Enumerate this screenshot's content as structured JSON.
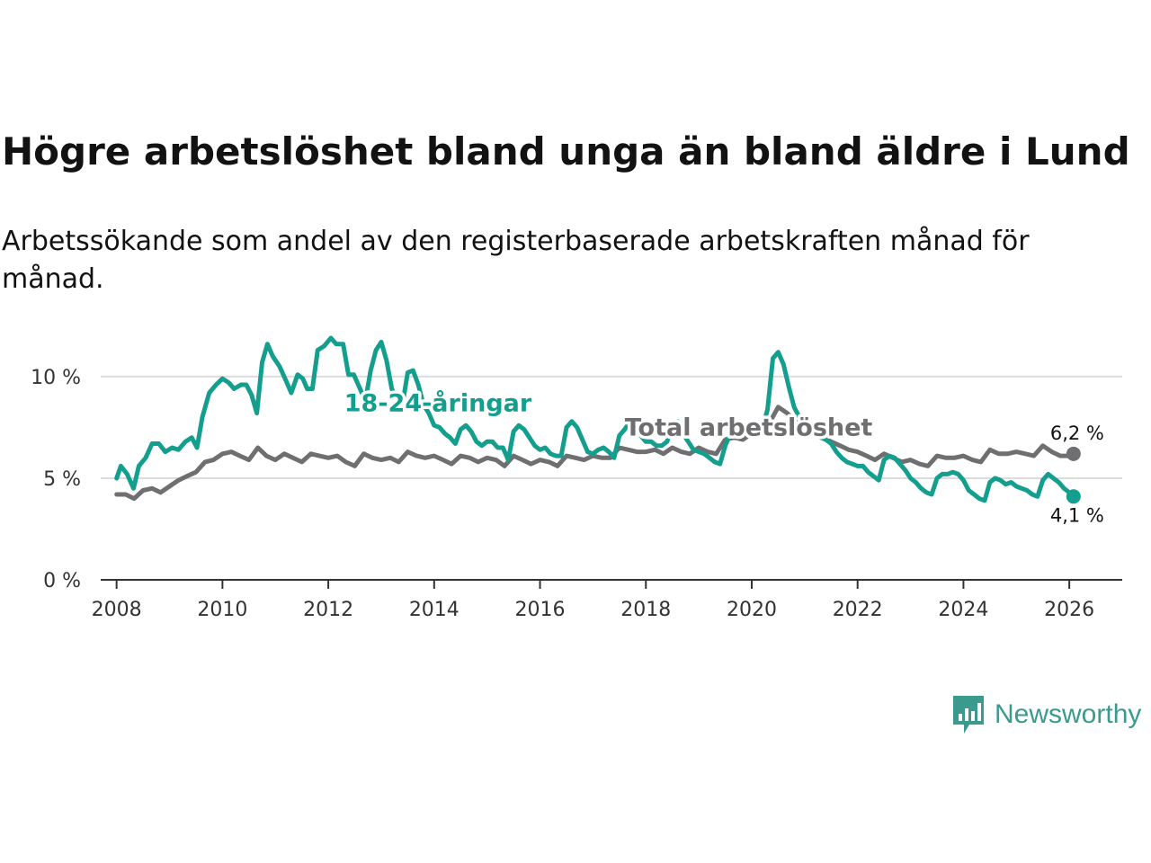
{
  "header": {
    "title": "Högre arbetslöshet bland unga än bland äldre i Lund",
    "subtitle": "Arbetssökande som andel av den registerbaserade arbetskraften månad för månad."
  },
  "brand": {
    "name": "Newsworthy",
    "icon": "bar-chart-speech-icon",
    "color": "#3a9a8e"
  },
  "chart_data": {
    "type": "line",
    "title": "Högre arbetslöshet bland unga än bland äldre i Lund",
    "subtitle": "Arbetssökande som andel av den registerbaserade arbetskraften månad för månad.",
    "xlabel": "",
    "ylabel": "",
    "xlim": [
      2007.7,
      2027.0
    ],
    "ylim": [
      0,
      11.5
    ],
    "x_ticks": [
      {
        "value": 2008,
        "label": "2008"
      },
      {
        "value": 2010,
        "label": "2010"
      },
      {
        "value": 2012,
        "label": "2012"
      },
      {
        "value": 2014,
        "label": "2014"
      },
      {
        "value": 2016,
        "label": "2016"
      },
      {
        "value": 2018,
        "label": "2018"
      },
      {
        "value": 2020,
        "label": "2020"
      },
      {
        "value": 2022,
        "label": "2022"
      },
      {
        "value": 2024,
        "label": "2024"
      },
      {
        "value": 2026,
        "label": "2026"
      }
    ],
    "y_ticks": [
      {
        "value": 0,
        "label": "0 %"
      },
      {
        "value": 5,
        "label": "5 %"
      },
      {
        "value": 10,
        "label": "10 %"
      }
    ],
    "grid": true,
    "series": [
      {
        "name": "Total arbetslöshet",
        "color": "#6f6e70",
        "end_label": "6,2 %",
        "points": [
          [
            2008.0,
            4.2
          ],
          [
            2008.17,
            4.2
          ],
          [
            2008.33,
            4.0
          ],
          [
            2008.5,
            4.4
          ],
          [
            2008.67,
            4.5
          ],
          [
            2008.83,
            4.3
          ],
          [
            2009.0,
            4.6
          ],
          [
            2009.17,
            4.9
          ],
          [
            2009.33,
            5.1
          ],
          [
            2009.5,
            5.3
          ],
          [
            2009.67,
            5.8
          ],
          [
            2009.83,
            5.9
          ],
          [
            2010.0,
            6.2
          ],
          [
            2010.17,
            6.3
          ],
          [
            2010.33,
            6.1
          ],
          [
            2010.5,
            5.9
          ],
          [
            2010.67,
            6.5
          ],
          [
            2010.83,
            6.1
          ],
          [
            2011.0,
            5.9
          ],
          [
            2011.17,
            6.2
          ],
          [
            2011.33,
            6.0
          ],
          [
            2011.5,
            5.8
          ],
          [
            2011.67,
            6.2
          ],
          [
            2011.83,
            6.1
          ],
          [
            2012.0,
            6.0
          ],
          [
            2012.17,
            6.1
          ],
          [
            2012.33,
            5.8
          ],
          [
            2012.5,
            5.6
          ],
          [
            2012.67,
            6.2
          ],
          [
            2012.83,
            6.0
          ],
          [
            2013.0,
            5.9
          ],
          [
            2013.17,
            6.0
          ],
          [
            2013.33,
            5.8
          ],
          [
            2013.5,
            6.3
          ],
          [
            2013.67,
            6.1
          ],
          [
            2013.83,
            6.0
          ],
          [
            2014.0,
            6.1
          ],
          [
            2014.17,
            5.9
          ],
          [
            2014.33,
            5.7
          ],
          [
            2014.5,
            6.1
          ],
          [
            2014.67,
            6.0
          ],
          [
            2014.83,
            5.8
          ],
          [
            2015.0,
            6.0
          ],
          [
            2015.17,
            5.9
          ],
          [
            2015.33,
            5.6
          ],
          [
            2015.5,
            6.1
          ],
          [
            2015.67,
            5.9
          ],
          [
            2015.83,
            5.7
          ],
          [
            2016.0,
            5.9
          ],
          [
            2016.17,
            5.8
          ],
          [
            2016.33,
            5.6
          ],
          [
            2016.5,
            6.1
          ],
          [
            2016.67,
            6.0
          ],
          [
            2016.83,
            5.9
          ],
          [
            2017.0,
            6.1
          ],
          [
            2017.17,
            6.0
          ],
          [
            2017.33,
            6.0
          ],
          [
            2017.5,
            6.5
          ],
          [
            2017.67,
            6.4
          ],
          [
            2017.83,
            6.3
          ],
          [
            2018.0,
            6.3
          ],
          [
            2018.17,
            6.4
          ],
          [
            2018.33,
            6.2
          ],
          [
            2018.5,
            6.5
          ],
          [
            2018.67,
            6.3
          ],
          [
            2018.83,
            6.2
          ],
          [
            2019.0,
            6.5
          ],
          [
            2019.17,
            6.3
          ],
          [
            2019.33,
            6.2
          ],
          [
            2019.5,
            6.9
          ],
          [
            2019.67,
            7.0
          ],
          [
            2019.83,
            6.9
          ],
          [
            2020.0,
            7.2
          ],
          [
            2020.17,
            7.3
          ],
          [
            2020.33,
            7.7
          ],
          [
            2020.5,
            8.5
          ],
          [
            2020.67,
            8.2
          ],
          [
            2020.83,
            7.8
          ],
          [
            2021.0,
            7.6
          ],
          [
            2021.17,
            7.3
          ],
          [
            2021.33,
            7.0
          ],
          [
            2021.5,
            6.8
          ],
          [
            2021.67,
            6.6
          ],
          [
            2021.83,
            6.4
          ],
          [
            2022.0,
            6.3
          ],
          [
            2022.17,
            6.1
          ],
          [
            2022.33,
            5.9
          ],
          [
            2022.5,
            6.2
          ],
          [
            2022.67,
            6.0
          ],
          [
            2022.83,
            5.8
          ],
          [
            2023.0,
            5.9
          ],
          [
            2023.17,
            5.7
          ],
          [
            2023.33,
            5.6
          ],
          [
            2023.5,
            6.1
          ],
          [
            2023.67,
            6.0
          ],
          [
            2023.83,
            6.0
          ],
          [
            2024.0,
            6.1
          ],
          [
            2024.17,
            5.9
          ],
          [
            2024.33,
            5.8
          ],
          [
            2024.5,
            6.4
          ],
          [
            2024.67,
            6.2
          ],
          [
            2024.83,
            6.2
          ],
          [
            2025.0,
            6.3
          ],
          [
            2025.17,
            6.2
          ],
          [
            2025.33,
            6.1
          ],
          [
            2025.5,
            6.6
          ],
          [
            2025.67,
            6.3
          ],
          [
            2025.83,
            6.1
          ],
          [
            2026.0,
            6.1
          ],
          [
            2026.08,
            6.2
          ]
        ]
      },
      {
        "name": "18-24-åringar",
        "color": "#139e8e",
        "end_label": "4,1 %",
        "points": [
          [
            2008.0,
            5.0
          ],
          [
            2008.08,
            5.6
          ],
          [
            2008.2,
            5.2
          ],
          [
            2008.32,
            4.5
          ],
          [
            2008.42,
            5.6
          ],
          [
            2008.55,
            6.0
          ],
          [
            2008.67,
            6.7
          ],
          [
            2008.8,
            6.7
          ],
          [
            2008.92,
            6.3
          ],
          [
            2009.05,
            6.5
          ],
          [
            2009.17,
            6.4
          ],
          [
            2009.3,
            6.8
          ],
          [
            2009.42,
            7.0
          ],
          [
            2009.52,
            6.5
          ],
          [
            2009.62,
            8.0
          ],
          [
            2009.75,
            9.2
          ],
          [
            2009.88,
            9.6
          ],
          [
            2010.0,
            9.9
          ],
          [
            2010.12,
            9.7
          ],
          [
            2010.22,
            9.4
          ],
          [
            2010.35,
            9.6
          ],
          [
            2010.45,
            9.6
          ],
          [
            2010.55,
            9.1
          ],
          [
            2010.65,
            8.2
          ],
          [
            2010.75,
            10.7
          ],
          [
            2010.85,
            11.6
          ],
          [
            2010.95,
            11.0
          ],
          [
            2011.08,
            10.5
          ],
          [
            2011.2,
            9.8
          ],
          [
            2011.3,
            9.2
          ],
          [
            2011.42,
            10.1
          ],
          [
            2011.52,
            9.9
          ],
          [
            2011.6,
            9.4
          ],
          [
            2011.7,
            9.4
          ],
          [
            2011.8,
            11.3
          ],
          [
            2011.92,
            11.5
          ],
          [
            2012.05,
            11.9
          ],
          [
            2012.15,
            11.6
          ],
          [
            2012.28,
            11.6
          ],
          [
            2012.38,
            10.1
          ],
          [
            2012.48,
            10.1
          ],
          [
            2012.6,
            9.4
          ],
          [
            2012.7,
            8.8
          ],
          [
            2012.8,
            10.3
          ],
          [
            2012.9,
            11.3
          ],
          [
            2013.0,
            11.7
          ],
          [
            2013.1,
            10.8
          ],
          [
            2013.2,
            9.4
          ],
          [
            2013.3,
            8.8
          ],
          [
            2013.4,
            8.6
          ],
          [
            2013.5,
            10.2
          ],
          [
            2013.6,
            10.3
          ],
          [
            2013.7,
            9.6
          ],
          [
            2013.8,
            8.6
          ],
          [
            2013.9,
            8.2
          ],
          [
            2014.0,
            7.6
          ],
          [
            2014.1,
            7.5
          ],
          [
            2014.2,
            7.2
          ],
          [
            2014.3,
            7.0
          ],
          [
            2014.4,
            6.7
          ],
          [
            2014.5,
            7.4
          ],
          [
            2014.6,
            7.6
          ],
          [
            2014.7,
            7.3
          ],
          [
            2014.8,
            6.8
          ],
          [
            2014.9,
            6.6
          ],
          [
            2015.0,
            6.8
          ],
          [
            2015.1,
            6.8
          ],
          [
            2015.2,
            6.5
          ],
          [
            2015.3,
            6.5
          ],
          [
            2015.4,
            5.9
          ],
          [
            2015.5,
            7.3
          ],
          [
            2015.6,
            7.6
          ],
          [
            2015.7,
            7.4
          ],
          [
            2015.8,
            7.0
          ],
          [
            2015.9,
            6.6
          ],
          [
            2016.0,
            6.4
          ],
          [
            2016.1,
            6.5
          ],
          [
            2016.2,
            6.2
          ],
          [
            2016.3,
            6.1
          ],
          [
            2016.4,
            6.1
          ],
          [
            2016.5,
            7.5
          ],
          [
            2016.6,
            7.8
          ],
          [
            2016.7,
            7.5
          ],
          [
            2016.8,
            6.9
          ],
          [
            2016.9,
            6.3
          ],
          [
            2017.0,
            6.2
          ],
          [
            2017.1,
            6.4
          ],
          [
            2017.2,
            6.5
          ],
          [
            2017.3,
            6.3
          ],
          [
            2017.4,
            6.0
          ],
          [
            2017.5,
            7.1
          ],
          [
            2017.6,
            7.4
          ],
          [
            2017.7,
            7.8
          ],
          [
            2017.8,
            7.5
          ],
          [
            2017.9,
            7.1
          ],
          [
            2018.0,
            6.8
          ],
          [
            2018.1,
            6.8
          ],
          [
            2018.2,
            6.6
          ],
          [
            2018.3,
            6.6
          ],
          [
            2018.4,
            6.8
          ],
          [
            2018.5,
            7.6
          ],
          [
            2018.6,
            7.8
          ],
          [
            2018.7,
            7.2
          ],
          [
            2018.8,
            6.8
          ],
          [
            2018.9,
            6.4
          ],
          [
            2019.0,
            6.3
          ],
          [
            2019.1,
            6.2
          ],
          [
            2019.2,
            6.0
          ],
          [
            2019.3,
            5.8
          ],
          [
            2019.4,
            5.7
          ],
          [
            2019.5,
            6.6
          ],
          [
            2019.6,
            7.2
          ],
          [
            2019.7,
            7.6
          ],
          [
            2019.8,
            7.5
          ],
          [
            2019.9,
            7.2
          ],
          [
            2020.0,
            7.2
          ],
          [
            2020.1,
            7.2
          ],
          [
            2020.2,
            7.4
          ],
          [
            2020.3,
            8.4
          ],
          [
            2020.4,
            10.9
          ],
          [
            2020.5,
            11.2
          ],
          [
            2020.6,
            10.6
          ],
          [
            2020.7,
            9.5
          ],
          [
            2020.8,
            8.5
          ],
          [
            2020.9,
            8.0
          ],
          [
            2021.0,
            7.8
          ],
          [
            2021.1,
            7.6
          ],
          [
            2021.2,
            7.3
          ],
          [
            2021.3,
            7.0
          ],
          [
            2021.4,
            6.9
          ],
          [
            2021.5,
            6.7
          ],
          [
            2021.6,
            6.3
          ],
          [
            2021.7,
            6.0
          ],
          [
            2021.8,
            5.8
          ],
          [
            2021.9,
            5.7
          ],
          [
            2022.0,
            5.6
          ],
          [
            2022.1,
            5.6
          ],
          [
            2022.2,
            5.3
          ],
          [
            2022.3,
            5.1
          ],
          [
            2022.4,
            4.9
          ],
          [
            2022.5,
            5.9
          ],
          [
            2022.6,
            6.1
          ],
          [
            2022.7,
            6.0
          ],
          [
            2022.8,
            5.7
          ],
          [
            2022.9,
            5.4
          ],
          [
            2023.0,
            5.0
          ],
          [
            2023.1,
            4.8
          ],
          [
            2023.2,
            4.5
          ],
          [
            2023.3,
            4.3
          ],
          [
            2023.4,
            4.2
          ],
          [
            2023.5,
            5.0
          ],
          [
            2023.6,
            5.2
          ],
          [
            2023.7,
            5.2
          ],
          [
            2023.8,
            5.3
          ],
          [
            2023.9,
            5.2
          ],
          [
            2024.0,
            4.9
          ],
          [
            2024.1,
            4.4
          ],
          [
            2024.2,
            4.2
          ],
          [
            2024.3,
            4.0
          ],
          [
            2024.4,
            3.9
          ],
          [
            2024.5,
            4.8
          ],
          [
            2024.6,
            5.0
          ],
          [
            2024.7,
            4.9
          ],
          [
            2024.8,
            4.7
          ],
          [
            2024.9,
            4.8
          ],
          [
            2025.0,
            4.6
          ],
          [
            2025.1,
            4.5
          ],
          [
            2025.2,
            4.4
          ],
          [
            2025.3,
            4.2
          ],
          [
            2025.4,
            4.1
          ],
          [
            2025.5,
            4.9
          ],
          [
            2025.6,
            5.2
          ],
          [
            2025.7,
            5.0
          ],
          [
            2025.8,
            4.8
          ],
          [
            2025.9,
            4.5
          ],
          [
            2026.0,
            4.3
          ],
          [
            2026.08,
            4.1
          ]
        ]
      }
    ],
    "annotations": [
      {
        "text": "18-24-åringar",
        "series": "18-24-åringar",
        "at_x": 2012.3,
        "at_y": 8.3
      },
      {
        "text": "Total arbetslöshet",
        "series": "Total arbetslöshet",
        "at_x": 2017.6,
        "at_y": 7.1
      }
    ]
  }
}
